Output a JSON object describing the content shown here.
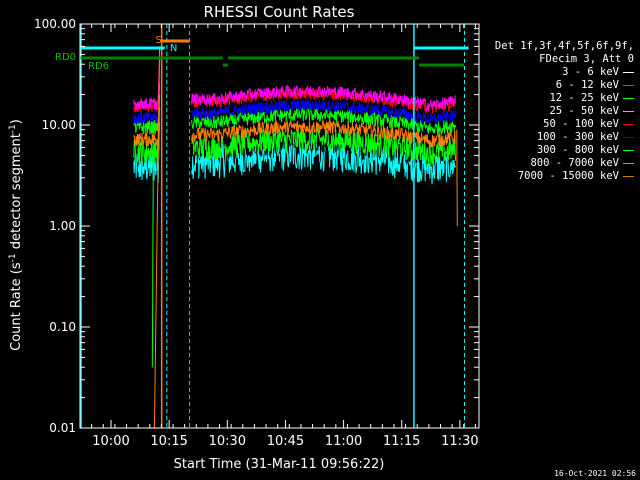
{
  "chart_data": {
    "type": "line",
    "title": "RHESSI Count Rates",
    "xlabel": "Start Time (31-Mar-11 09:56:22)",
    "ylabel_main": "Count Rate (s",
    "ylabel_sup": "-1",
    "ylabel_tail": " detector segment",
    "ylabel_sup2": "-1",
    "ylabel_end": ")",
    "yscale": "log",
    "ylim": [
      0.01,
      100
    ],
    "xlim_minutes": [
      -3.0,
      35.6
    ],
    "x_ticks": [
      "10:00",
      "10:15",
      "10:30",
      "10:45",
      "11:00",
      "11:15",
      "11:30"
    ],
    "x_tick_minutes": [
      0,
      15,
      30,
      45,
      60,
      75,
      90
    ],
    "x_tick_label_minutes": [
      0,
      7.5,
      15,
      22.5,
      30,
      37.5,
      45
    ],
    "y_ticks": [
      "0.01",
      "0.10",
      "1.00",
      "10.00",
      "100.00"
    ],
    "y_tick_values": [
      0.01,
      0.1,
      1,
      10,
      100
    ],
    "grid": false,
    "legend_position": "right",
    "legend_header": [
      "Det 1f,3f,4f,5f,6f,9f,",
      "FDecim 3, Att 0"
    ],
    "series": [
      {
        "name": "3 - 6 keV",
        "color": "#000000",
        "level": 6.2
      },
      {
        "name": "6 - 12 keV",
        "color": "#ff00ff",
        "level": 18.0
      },
      {
        "name": "12 - 25 keV",
        "color": "#00ff00",
        "level": 6.0
      },
      {
        "name": "25 - 50 keV",
        "color": "#00ffff",
        "level": 4.3
      },
      {
        "name": "50 - 100 keV",
        "color": "#ff0000",
        "level": 17.0
      },
      {
        "name": "100 - 300 keV",
        "color": "#0000ff",
        "level": 13.0
      },
      {
        "name": "300 - 800 keV",
        "color": "#00ff00",
        "level": 10.5
      },
      {
        "name": "800 - 7000 keV",
        "color": "#ff8000",
        "level": 8.0
      },
      {
        "name": "7000 - 15000 keV",
        "color": "#d08000",
        "level": 7.0
      }
    ],
    "annotations": {
      "rd0": "RD0",
      "rd6": "RD6",
      "s": "S",
      "n": "N"
    }
  },
  "timestamp": "16-Oct-2021 02:56"
}
